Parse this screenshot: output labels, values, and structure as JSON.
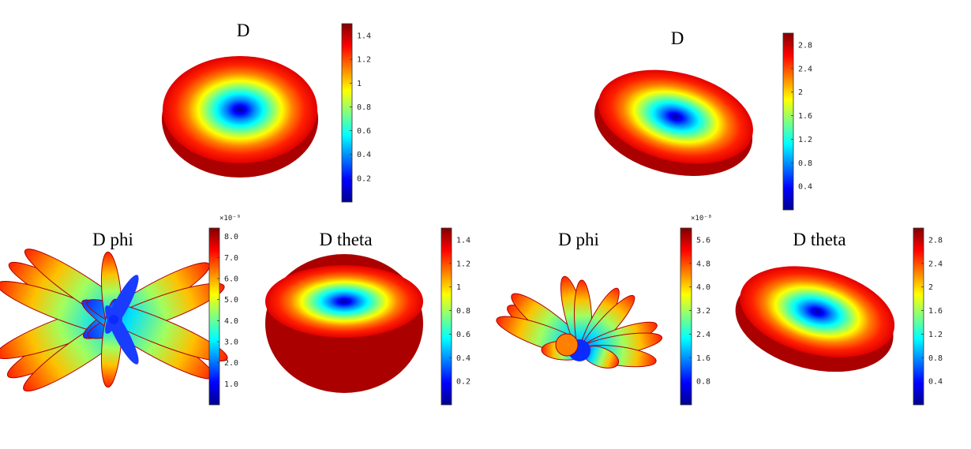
{
  "colors": {
    "jet": [
      "#00008f",
      "#0000ff",
      "#0080ff",
      "#00ffff",
      "#80ff80",
      "#ffff00",
      "#ff8000",
      "#ff0000",
      "#800000"
    ]
  },
  "chart_data": [
    {
      "type": "surface-3d",
      "shape": "torus-pattern",
      "title": "D",
      "colorbar": {
        "ticks": [
          "0.2",
          "0.4",
          "0.6",
          "0.8",
          "1",
          "1.2",
          "1.4"
        ],
        "tick_values": [
          0.2,
          0.4,
          0.6,
          0.8,
          1.0,
          1.2,
          1.4
        ],
        "range": [
          0,
          1.5
        ],
        "multiplier": ""
      }
    },
    {
      "type": "surface-3d",
      "shape": "torus-pattern",
      "title": "D",
      "colorbar": {
        "ticks": [
          "0.4",
          "0.8",
          "1.2",
          "1.6",
          "2",
          "2.4",
          "2.8"
        ],
        "tick_values": [
          0.4,
          0.8,
          1.2,
          1.6,
          2.0,
          2.4,
          2.8
        ],
        "range": [
          0,
          3
        ],
        "multiplier": ""
      }
    },
    {
      "type": "surface-3d",
      "shape": "multi-lobe-pattern",
      "title": "D phi",
      "colorbar": {
        "ticks": [
          "1.0",
          "2.0",
          "3.0",
          "4.0",
          "5.0",
          "6.0",
          "7.0",
          "8.0"
        ],
        "tick_values": [
          1,
          2,
          3,
          4,
          5,
          6,
          7,
          8
        ],
        "range": [
          0,
          8.4
        ],
        "multiplier": "×10⁻⁹"
      }
    },
    {
      "type": "surface-3d",
      "shape": "torus-pattern",
      "title": "D theta",
      "colorbar": {
        "ticks": [
          "0.2",
          "0.4",
          "0.6",
          "0.8",
          "1",
          "1.2",
          "1.4"
        ],
        "tick_values": [
          0.2,
          0.4,
          0.6,
          0.8,
          1.0,
          1.2,
          1.4
        ],
        "range": [
          0,
          1.5
        ],
        "multiplier": ""
      }
    },
    {
      "type": "surface-3d",
      "shape": "multi-lobe-pattern",
      "title": "D phi",
      "colorbar": {
        "ticks": [
          "0.8",
          "1.6",
          "2.4",
          "3.2",
          "4.0",
          "4.8",
          "5.6"
        ],
        "tick_values": [
          0.8,
          1.6,
          2.4,
          3.2,
          4.0,
          4.8,
          5.6
        ],
        "range": [
          0,
          6
        ],
        "multiplier": "×10⁻⁸"
      }
    },
    {
      "type": "surface-3d",
      "shape": "torus-pattern",
      "title": "D theta",
      "colorbar": {
        "ticks": [
          "0.4",
          "0.8",
          "1.2",
          "1.6",
          "2",
          "2.4",
          "2.8"
        ],
        "tick_values": [
          0.4,
          0.8,
          1.2,
          1.6,
          2.0,
          2.4,
          2.8
        ],
        "range": [
          0,
          3
        ],
        "multiplier": ""
      }
    }
  ]
}
